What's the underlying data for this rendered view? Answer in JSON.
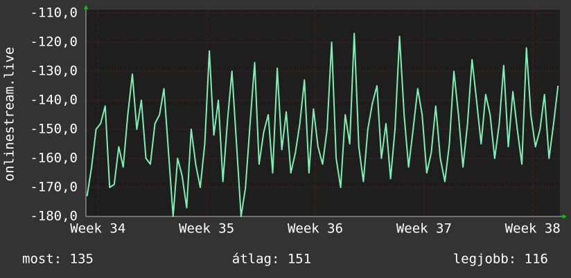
{
  "chart_data": {
    "type": "line",
    "y_label": "onlinestream.live",
    "x": [
      33.9,
      33.942,
      33.983,
      34.025,
      34.067,
      34.108,
      34.15,
      34.192,
      34.233,
      34.275,
      34.317,
      34.358,
      34.4,
      34.442,
      34.483,
      34.525,
      34.567,
      34.608,
      34.65,
      34.692,
      34.733,
      34.775,
      34.817,
      34.858,
      34.9,
      34.942,
      34.983,
      35.025,
      35.067,
      35.108,
      35.15,
      35.192,
      35.233,
      35.275,
      35.317,
      35.358,
      35.4,
      35.442,
      35.483,
      35.525,
      35.567,
      35.608,
      35.65,
      35.692,
      35.733,
      35.775,
      35.817,
      35.858,
      35.9,
      35.942,
      35.983,
      36.025,
      36.067,
      36.108,
      36.15,
      36.192,
      36.233,
      36.275,
      36.317,
      36.358,
      36.4,
      36.442,
      36.483,
      36.525,
      36.567,
      36.608,
      36.65,
      36.692,
      36.733,
      36.775,
      36.817,
      36.858,
      36.9,
      36.942,
      36.983,
      37.025,
      37.067,
      37.108,
      37.15,
      37.192,
      37.233,
      37.275,
      37.317,
      37.358,
      37.4,
      37.442,
      37.483,
      37.525,
      37.567,
      37.608,
      37.65,
      37.692,
      37.733,
      37.775,
      37.817,
      37.858,
      37.9,
      37.942,
      37.983,
      38.025,
      38.067,
      38.108,
      38.15,
      38.192,
      38.233
    ],
    "series": [
      {
        "color": "#7ff0b4",
        "values": [
          -173,
          -163,
          -150,
          -148,
          -142,
          -170,
          -169,
          -156,
          -163,
          -145,
          -131,
          -150,
          -140,
          -160,
          -162,
          -148,
          -145,
          -136,
          -158,
          -180,
          -160,
          -166,
          -177,
          -150,
          -162,
          -170,
          -155,
          -123,
          -152,
          -140,
          -168,
          -147,
          -130,
          -155,
          -180,
          -170,
          -148,
          -127,
          -162,
          -151,
          -145,
          -165,
          -129,
          -157,
          -144,
          -165,
          -158,
          -148,
          -133,
          -165,
          -143,
          -156,
          -162,
          -150,
          -120,
          -160,
          -170,
          -145,
          -155,
          -117,
          -156,
          -168,
          -150,
          -141,
          -135,
          -160,
          -148,
          -167,
          -150,
          -118,
          -145,
          -163,
          -150,
          -136,
          -145,
          -165,
          -158,
          -142,
          -160,
          -168,
          -155,
          -130,
          -145,
          -163,
          -148,
          -126,
          -140,
          -155,
          -138,
          -145,
          -160,
          -148,
          -128,
          -156,
          -137,
          -150,
          -162,
          -122,
          -145,
          -156,
          -150,
          -138,
          -160,
          -148,
          -135
        ]
      }
    ],
    "xlim": [
      33.89,
      38.25
    ],
    "xticks": [
      {
        "value": 34,
        "label": "Week 34"
      },
      {
        "value": 35,
        "label": "Week 35"
      },
      {
        "value": 36,
        "label": "Week 36"
      },
      {
        "value": 37,
        "label": "Week 37"
      },
      {
        "value": 38,
        "label": "Week 38"
      }
    ],
    "ylim": [
      -180,
      -110
    ],
    "yticks": [
      {
        "value": -180,
        "label": "-180,0"
      },
      {
        "value": -170,
        "label": "-170,0"
      },
      {
        "value": -160,
        "label": "-160,0"
      },
      {
        "value": -150,
        "label": "-150,0"
      },
      {
        "value": -140,
        "label": "-140,0"
      },
      {
        "value": -130,
        "label": "-130,0"
      },
      {
        "value": -120,
        "label": "-120,0"
      },
      {
        "value": -110,
        "label": "-110,0"
      }
    ],
    "grid": true,
    "footer": [
      "most: 135",
      "átlag: 151",
      "legjobb: 116"
    ]
  }
}
